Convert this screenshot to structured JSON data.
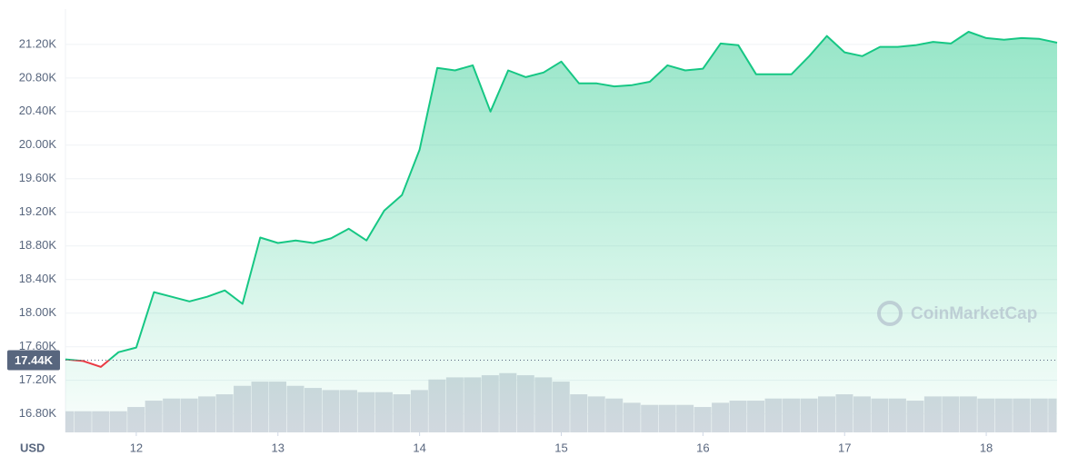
{
  "chart_data": {
    "type": "line",
    "x": [
      11.5,
      11.625,
      11.75,
      11.875,
      12,
      12.125,
      12.25,
      12.375,
      12.5,
      12.625,
      12.75,
      12.875,
      13,
      13.125,
      13.25,
      13.375,
      13.5,
      13.625,
      13.75,
      13.875,
      14,
      14.125,
      14.25,
      14.375,
      14.5,
      14.625,
      14.75,
      14.875,
      15,
      15.125,
      15.25,
      15.375,
      15.5,
      15.625,
      15.75,
      15.875,
      16,
      16.125,
      16.25,
      16.375,
      16.5,
      16.625,
      16.75,
      16.875,
      17,
      17.125,
      17.25,
      17.375,
      17.5,
      17.625,
      17.75,
      17.875,
      18,
      18.125,
      18.25,
      18.375,
      18.5
    ],
    "series": [
      {
        "type": "area",
        "color": "#16c784",
        "down_color": "#ea3943",
        "values": [
          17450,
          17430,
          17360,
          17535,
          17590,
          18250,
          18195,
          18140,
          18195,
          18270,
          18110,
          18900,
          18835,
          18865,
          18835,
          18890,
          19005,
          18865,
          19220,
          19405,
          19945,
          20920,
          20890,
          20950,
          20400,
          20890,
          20810,
          20865,
          20995,
          20735,
          20735,
          20700,
          20715,
          20755,
          20950,
          20890,
          20910,
          21210,
          21190,
          20845,
          20845,
          20845,
          21060,
          21300,
          21105,
          21060,
          21170,
          21170,
          21190,
          21230,
          21210,
          21350,
          21275,
          21255,
          21275,
          21265,
          21220
        ]
      },
      {
        "type": "bar",
        "axis": "y2",
        "color": "#d5d9e1",
        "values": [
          5,
          5,
          5,
          5,
          6,
          7.5,
          8,
          8,
          8.5,
          9,
          11,
          12,
          12,
          11,
          10.5,
          10,
          10,
          9.5,
          9.5,
          9,
          10,
          12.5,
          13,
          13,
          13.5,
          14,
          13.5,
          13,
          12,
          9,
          8.5,
          8,
          7,
          6.5,
          6.5,
          6.5,
          6,
          7,
          7.5,
          7.5,
          8,
          8,
          8,
          8.5,
          9,
          8.5,
          8,
          8,
          7.5,
          8.5,
          8.5,
          8.5,
          8,
          8,
          8,
          8,
          8
        ]
      }
    ],
    "xlim": [
      11.5,
      18.5
    ],
    "xticks": [
      12,
      13,
      14,
      15,
      16,
      17,
      18
    ],
    "ylim": [
      16580,
      21620
    ],
    "yticks": [
      {
        "value": 16800,
        "label": "16.80K"
      },
      {
        "value": 17200,
        "label": "17.20K"
      },
      {
        "value": 17600,
        "label": "17.60K"
      },
      {
        "value": 18000,
        "label": "18.00K"
      },
      {
        "value": 18400,
        "label": "18.40K"
      },
      {
        "value": 18800,
        "label": "18.80K"
      },
      {
        "value": 19200,
        "label": "19.20K"
      },
      {
        "value": 19600,
        "label": "19.60K"
      },
      {
        "value": 20000,
        "label": "20.00K"
      },
      {
        "value": 20400,
        "label": "20.40K"
      },
      {
        "value": 20800,
        "label": "20.80K"
      },
      {
        "value": 21200,
        "label": "21.20K"
      }
    ],
    "y2lim": [
      0,
      100
    ],
    "baseline": {
      "value": 17440,
      "label": "17.44K"
    },
    "currency": "USD",
    "watermark": "CoinMarketCap",
    "grid": true
  }
}
